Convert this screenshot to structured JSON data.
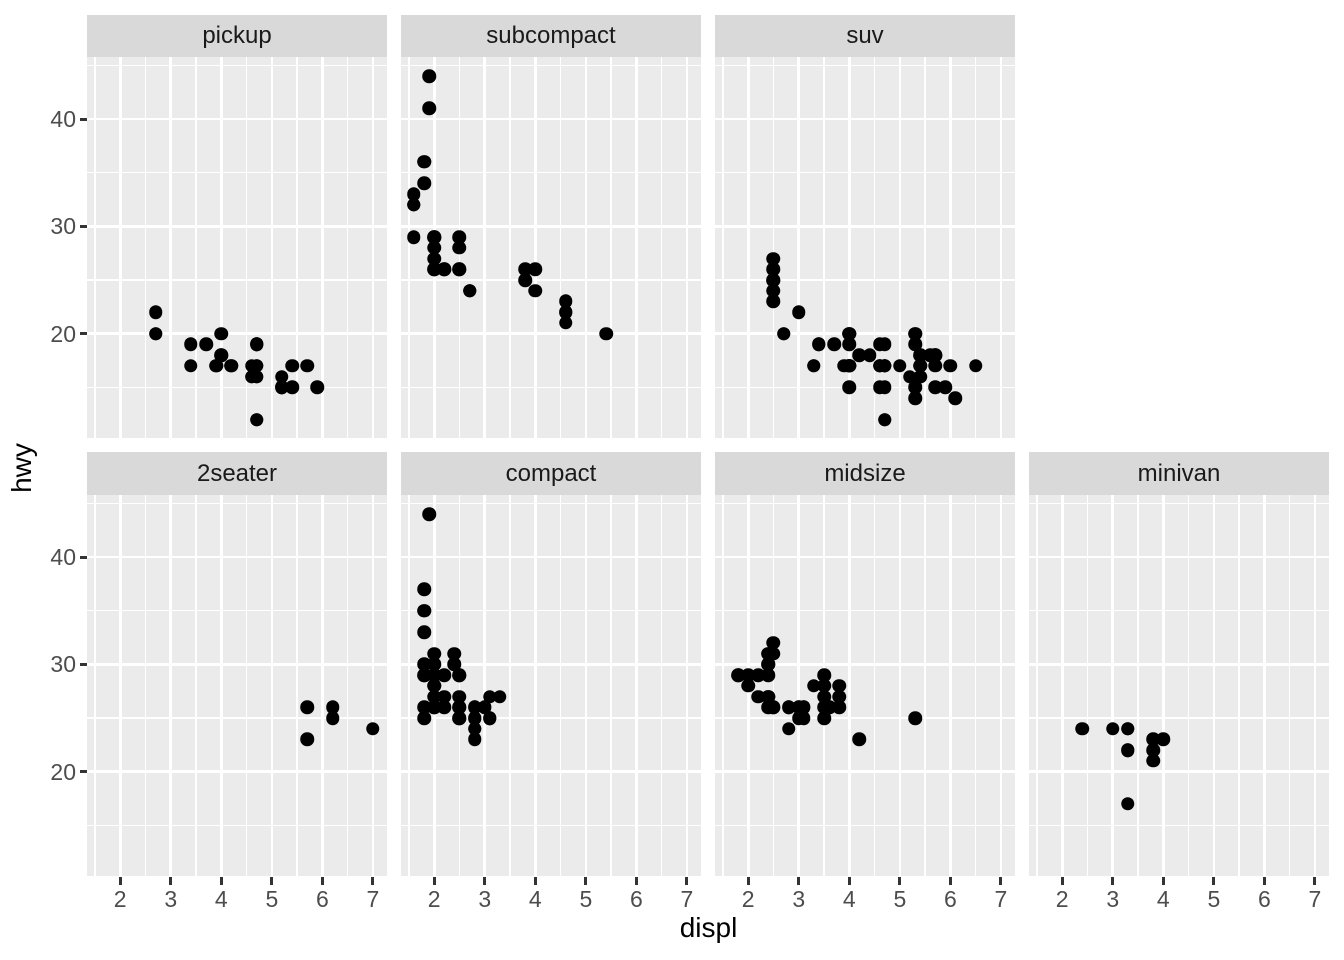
{
  "chart_data": {
    "type": "scatter",
    "title": "",
    "xlabel": "displ",
    "ylabel": "hwy",
    "facet_variable": "class",
    "legend": "none",
    "grid": true,
    "x_axis": {
      "tick_values": [
        2,
        3,
        4,
        5,
        6,
        7
      ],
      "tick_labels": [
        "2",
        "3",
        "4",
        "5",
        "6",
        "7"
      ],
      "minor_breaks": [
        1.5,
        2.5,
        3.5,
        4.5,
        5.5,
        6.5
      ],
      "range": [
        1.343,
        7.278
      ]
    },
    "y_axis": {
      "tick_values": [
        20,
        30,
        40
      ],
      "tick_labels": [
        "20",
        "30",
        "40"
      ],
      "minor_breaks": [
        15,
        25,
        35,
        45
      ],
      "range": [
        10.3,
        45.78
      ]
    },
    "facets": [
      {
        "label": "pickup",
        "row": 0,
        "col": 0,
        "points": [
          [
            2.7,
            20
          ],
          [
            2.7,
            20
          ],
          [
            2.7,
            22
          ],
          [
            3.4,
            17
          ],
          [
            3.4,
            19
          ],
          [
            3.7,
            19
          ],
          [
            3.9,
            17
          ],
          [
            3.9,
            17
          ],
          [
            4.0,
            18
          ],
          [
            4.0,
            20
          ],
          [
            4.0,
            18
          ],
          [
            4.2,
            17
          ],
          [
            4.2,
            17
          ],
          [
            4.6,
            16
          ],
          [
            4.6,
            16
          ],
          [
            4.6,
            17
          ],
          [
            4.7,
            19
          ],
          [
            4.7,
            19
          ],
          [
            4.7,
            19
          ],
          [
            4.7,
            12
          ],
          [
            4.7,
            16
          ],
          [
            4.7,
            12
          ],
          [
            4.7,
            17
          ],
          [
            4.7,
            17
          ],
          [
            4.7,
            16
          ],
          [
            5.2,
            15
          ],
          [
            5.2,
            15
          ],
          [
            5.2,
            15
          ],
          [
            5.2,
            16
          ],
          [
            5.4,
            15
          ],
          [
            5.4,
            17
          ],
          [
            5.7,
            17
          ],
          [
            5.9,
            15
          ]
        ]
      },
      {
        "label": "subcompact",
        "row": 0,
        "col": 1,
        "points": [
          [
            1.6,
            33
          ],
          [
            1.6,
            32
          ],
          [
            1.6,
            32
          ],
          [
            1.6,
            29
          ],
          [
            1.6,
            32
          ],
          [
            1.8,
            36
          ],
          [
            1.8,
            36
          ],
          [
            1.8,
            34
          ],
          [
            2.0,
            29
          ],
          [
            1.9,
            44
          ],
          [
            1.9,
            41
          ],
          [
            2.0,
            29
          ],
          [
            2.0,
            26
          ],
          [
            2.5,
            28
          ],
          [
            2.5,
            29
          ],
          [
            2.0,
            26
          ],
          [
            2.0,
            27
          ],
          [
            2.0,
            28
          ],
          [
            2.0,
            29
          ],
          [
            2.7,
            24
          ],
          [
            2.7,
            24
          ],
          [
            2.7,
            24
          ],
          [
            2.2,
            26
          ],
          [
            2.2,
            26
          ],
          [
            2.5,
            26
          ],
          [
            2.5,
            26
          ],
          [
            3.8,
            26
          ],
          [
            3.8,
            25
          ],
          [
            4.0,
            26
          ],
          [
            4.0,
            24
          ],
          [
            4.6,
            21
          ],
          [
            4.6,
            22
          ],
          [
            4.6,
            23
          ],
          [
            4.6,
            22
          ],
          [
            5.4,
            20
          ]
        ]
      },
      {
        "label": "suv",
        "row": 0,
        "col": 2,
        "points": [
          [
            2.5,
            23
          ],
          [
            2.5,
            24
          ],
          [
            2.5,
            25
          ],
          [
            2.5,
            25
          ],
          [
            2.5,
            26
          ],
          [
            2.5,
            27
          ],
          [
            2.7,
            20
          ],
          [
            2.7,
            20
          ],
          [
            3.4,
            19
          ],
          [
            3.4,
            19
          ],
          [
            4.0,
            20
          ],
          [
            4.7,
            17
          ],
          [
            3.0,
            22
          ],
          [
            3.7,
            19
          ],
          [
            4.0,
            20
          ],
          [
            4.7,
            17
          ],
          [
            4.7,
            12
          ],
          [
            4.7,
            19
          ],
          [
            5.7,
            18
          ],
          [
            6.1,
            14
          ],
          [
            3.3,
            17
          ],
          [
            3.3,
            17
          ],
          [
            4.0,
            20
          ],
          [
            5.6,
            18
          ],
          [
            3.9,
            17
          ],
          [
            4.7,
            17
          ],
          [
            4.7,
            17
          ],
          [
            4.7,
            12
          ],
          [
            5.2,
            16
          ],
          [
            5.7,
            18
          ],
          [
            5.9,
            15
          ],
          [
            4.0,
            17
          ],
          [
            4.0,
            17
          ],
          [
            4.0,
            17
          ],
          [
            4.0,
            17
          ],
          [
            4.6,
            17
          ],
          [
            4.6,
            17
          ],
          [
            4.0,
            17
          ],
          [
            4.0,
            19
          ],
          [
            4.6,
            19
          ],
          [
            5.0,
            17
          ],
          [
            4.0,
            15
          ],
          [
            4.2,
            18
          ],
          [
            4.4,
            18
          ],
          [
            4.6,
            15
          ],
          [
            4.6,
            17
          ],
          [
            5.4,
            17
          ],
          [
            5.4,
            18
          ],
          [
            5.4,
            16
          ],
          [
            5.4,
            17
          ],
          [
            5.4,
            18
          ],
          [
            4.7,
            15
          ],
          [
            5.7,
            18
          ],
          [
            5.3,
            15
          ],
          [
            5.3,
            20
          ],
          [
            5.3,
            20
          ],
          [
            5.7,
            17
          ],
          [
            6.0,
            17
          ],
          [
            5.3,
            14
          ],
          [
            5.3,
            19
          ],
          [
            5.7,
            15
          ],
          [
            6.5,
            17
          ]
        ]
      },
      {
        "label": "2seater",
        "row": 1,
        "col": 0,
        "points": [
          [
            5.7,
            26
          ],
          [
            5.7,
            23
          ],
          [
            6.2,
            26
          ],
          [
            6.2,
            25
          ],
          [
            7.0,
            24
          ]
        ]
      },
      {
        "label": "compact",
        "row": 1,
        "col": 1,
        "points": [
          [
            1.8,
            29
          ],
          [
            1.8,
            29
          ],
          [
            2.0,
            31
          ],
          [
            2.0,
            30
          ],
          [
            2.8,
            26
          ],
          [
            2.8,
            26
          ],
          [
            3.1,
            27
          ],
          [
            1.8,
            26
          ],
          [
            1.8,
            25
          ],
          [
            2.0,
            28
          ],
          [
            2.0,
            27
          ],
          [
            2.8,
            25
          ],
          [
            2.8,
            25
          ],
          [
            3.1,
            25
          ],
          [
            3.1,
            25
          ],
          [
            2.2,
            26
          ],
          [
            2.2,
            27
          ],
          [
            2.4,
            30
          ],
          [
            2.4,
            31
          ],
          [
            3.0,
            26
          ],
          [
            3.0,
            26
          ],
          [
            3.3,
            27
          ],
          [
            1.8,
            30
          ],
          [
            1.8,
            33
          ],
          [
            1.8,
            35
          ],
          [
            1.8,
            37
          ],
          [
            1.8,
            35
          ],
          [
            2.0,
            29
          ],
          [
            2.0,
            26
          ],
          [
            2.0,
            29
          ],
          [
            2.0,
            28
          ],
          [
            2.8,
            24
          ],
          [
            1.9,
            44
          ],
          [
            2.0,
            29
          ],
          [
            2.0,
            26
          ],
          [
            2.0,
            29
          ],
          [
            2.0,
            29
          ],
          [
            2.5,
            29
          ],
          [
            2.5,
            29
          ],
          [
            2.8,
            23
          ],
          [
            2.8,
            24
          ],
          [
            2.5,
            25
          ],
          [
            2.5,
            27
          ],
          [
            2.5,
            25
          ],
          [
            2.5,
            26
          ],
          [
            2.5,
            26
          ],
          [
            2.2,
            29
          ]
        ]
      },
      {
        "label": "midsize",
        "row": 1,
        "col": 2,
        "points": [
          [
            2.8,
            24
          ],
          [
            3.1,
            25
          ],
          [
            4.2,
            23
          ],
          [
            2.4,
            27
          ],
          [
            2.4,
            30
          ],
          [
            3.1,
            26
          ],
          [
            3.5,
            29
          ],
          [
            3.6,
            26
          ],
          [
            2.4,
            26
          ],
          [
            2.4,
            27
          ],
          [
            2.4,
            30
          ],
          [
            2.4,
            31
          ],
          [
            2.5,
            26
          ],
          [
            2.5,
            26
          ],
          [
            3.3,
            28
          ],
          [
            2.4,
            29
          ],
          [
            2.4,
            27
          ],
          [
            2.5,
            31
          ],
          [
            2.5,
            32
          ],
          [
            3.5,
            27
          ],
          [
            3.5,
            26
          ],
          [
            3.0,
            26
          ],
          [
            3.0,
            25
          ],
          [
            3.5,
            25
          ],
          [
            3.1,
            26
          ],
          [
            3.8,
            26
          ],
          [
            3.8,
            27
          ],
          [
            3.8,
            28
          ],
          [
            5.3,
            25
          ],
          [
            2.2,
            29
          ],
          [
            2.2,
            27
          ],
          [
            2.4,
            31
          ],
          [
            3.0,
            26
          ],
          [
            3.5,
            28
          ],
          [
            1.8,
            29
          ],
          [
            1.8,
            29
          ],
          [
            2.0,
            28
          ],
          [
            2.0,
            29
          ],
          [
            2.8,
            26
          ],
          [
            2.8,
            26
          ],
          [
            3.6,
            26
          ]
        ]
      },
      {
        "label": "minivan",
        "row": 1,
        "col": 3,
        "points": [
          [
            2.4,
            24
          ],
          [
            3.0,
            24
          ],
          [
            3.3,
            22
          ],
          [
            3.3,
            22
          ],
          [
            3.3,
            24
          ],
          [
            3.3,
            24
          ],
          [
            3.3,
            17
          ],
          [
            3.8,
            22
          ],
          [
            3.8,
            21
          ],
          [
            3.8,
            23
          ],
          [
            4.0,
            23
          ]
        ]
      }
    ]
  },
  "style": {
    "point_color": "#000000",
    "panel_bg": "#EBEBEB",
    "strip_bg": "#D9D9D9",
    "grid_color": "#FFFFFF",
    "tick_label_color": "#4D4D4D",
    "axis_title_color": "#000000",
    "strip_text_color": "#1A1A1A",
    "tick_mark_color": "#333333"
  }
}
